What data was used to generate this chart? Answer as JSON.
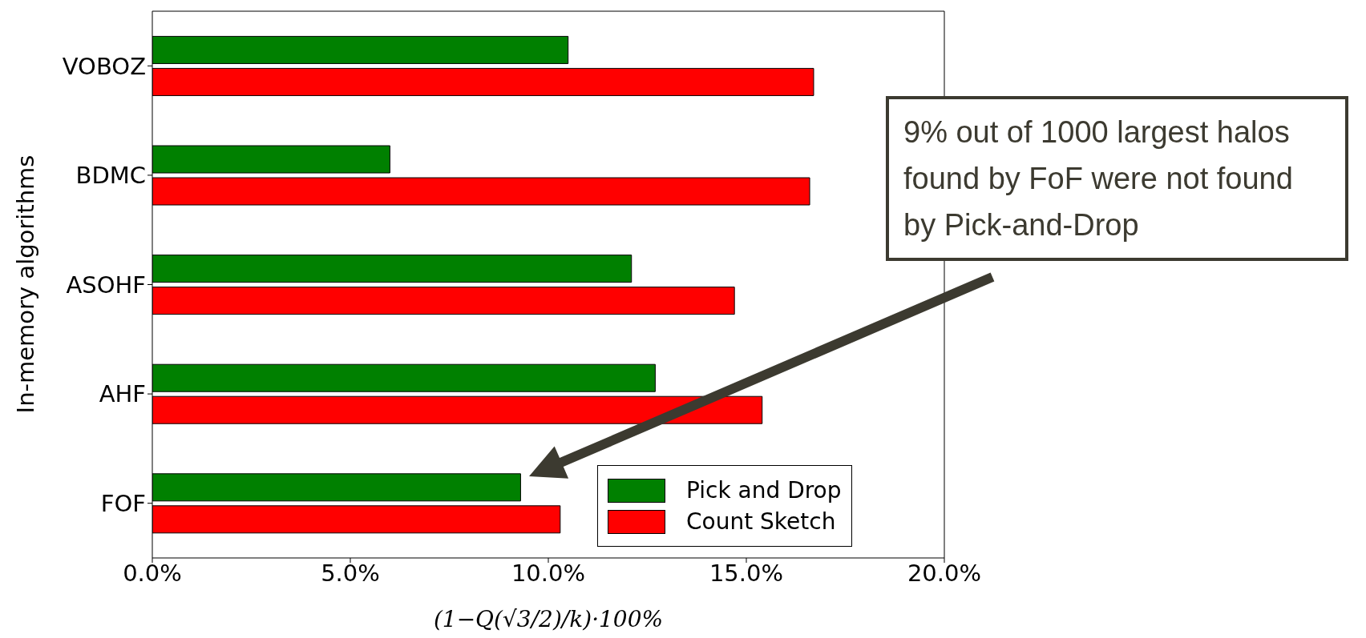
{
  "chart_data": {
    "type": "bar",
    "orientation": "horizontal",
    "categories": [
      "VOBOZ",
      "BDMC",
      "ASOHF",
      "AHF",
      "FOF"
    ],
    "series": [
      {
        "name": "Pick and Drop",
        "color": "#008000",
        "values": [
          10.5,
          6.0,
          12.1,
          12.7,
          9.3
        ]
      },
      {
        "name": "Count Sketch",
        "color": "#ff0000",
        "values": [
          16.7,
          16.6,
          14.7,
          15.4,
          10.3
        ]
      }
    ],
    "xlim": [
      0,
      20
    ],
    "xticks": [
      {
        "value": 0,
        "label": "0.0%"
      },
      {
        "value": 5,
        "label": "5.0%"
      },
      {
        "value": 10,
        "label": "10.0%"
      },
      {
        "value": 15,
        "label": "15.0%"
      },
      {
        "value": 20,
        "label": "20.0%"
      }
    ],
    "xlabel": "(1−Q(√3/2)/k)·100%",
    "ylabel": "In-memory algorithms",
    "legend": "bottom right",
    "grid": false,
    "annotations": [
      "9% out of 1000 largest halos found by FoF were not found by Pick-and-Drop"
    ]
  }
}
